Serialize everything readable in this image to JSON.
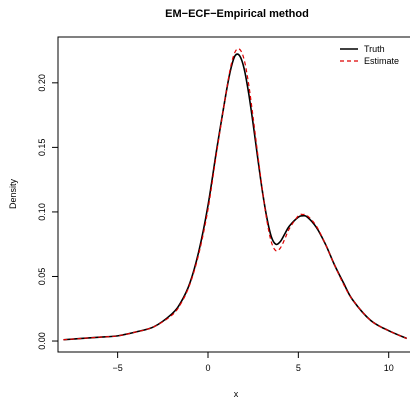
{
  "chart_data": {
    "type": "line",
    "title": "EM−ECF−Empirical method",
    "xlabel": "x",
    "ylabel": "Density",
    "xlim": [
      -8.3,
      11.4
    ],
    "ylim": [
      -0.0085,
      0.2355
    ],
    "x_ticks": [
      -5,
      0,
      5,
      10
    ],
    "x_tick_labels": [
      "−5",
      "0",
      "5",
      "10"
    ],
    "y_ticks": [
      0.0,
      0.05,
      0.1,
      0.15,
      0.2
    ],
    "y_tick_labels": [
      "0.00",
      "0.05",
      "0.10",
      "0.15",
      "0.20"
    ],
    "grid": false,
    "legend_position": "top-right",
    "series": [
      {
        "name": "Truth",
        "color": "#000000",
        "line_style": "solid",
        "x": [
          -8,
          -7,
          -6,
          -5,
          -4,
          -3,
          -2,
          -1.5,
          -1,
          -0.5,
          0,
          0.5,
          1,
          1.25,
          1.5,
          1.75,
          2,
          2.25,
          2.5,
          2.75,
          3,
          3.25,
          3.5,
          3.75,
          4,
          4.25,
          4.5,
          5,
          5.25,
          5.5,
          6,
          6.5,
          7,
          7.5,
          8,
          9,
          10,
          11
        ],
        "y": [
          0.001,
          0.002,
          0.003,
          0.004,
          0.007,
          0.011,
          0.021,
          0.03,
          0.045,
          0.07,
          0.105,
          0.15,
          0.192,
          0.21,
          0.221,
          0.221,
          0.211,
          0.192,
          0.168,
          0.142,
          0.117,
          0.096,
          0.081,
          0.075,
          0.077,
          0.083,
          0.089,
          0.096,
          0.097,
          0.096,
          0.088,
          0.075,
          0.059,
          0.045,
          0.032,
          0.016,
          0.008,
          0.002
        ]
      },
      {
        "name": "Estimate",
        "color": "#dd0000",
        "line_style": "dashed",
        "x": [
          -8,
          -7,
          -6,
          -5,
          -4,
          -3,
          -2,
          -1.5,
          -1,
          -0.5,
          0,
          0.5,
          1,
          1.25,
          1.5,
          1.75,
          2,
          2.25,
          2.5,
          2.75,
          3,
          3.25,
          3.5,
          3.75,
          4,
          4.25,
          4.5,
          5,
          5.25,
          5.5,
          6,
          6.5,
          7,
          7.5,
          8,
          9,
          10,
          11
        ],
        "y": [
          0.001,
          0.002,
          0.003,
          0.004,
          0.007,
          0.011,
          0.02,
          0.029,
          0.044,
          0.068,
          0.102,
          0.148,
          0.192,
          0.212,
          0.224,
          0.226,
          0.218,
          0.199,
          0.173,
          0.145,
          0.118,
          0.094,
          0.077,
          0.07,
          0.072,
          0.079,
          0.087,
          0.097,
          0.098,
          0.097,
          0.089,
          0.075,
          0.059,
          0.044,
          0.032,
          0.016,
          0.008,
          0.002
        ]
      }
    ]
  }
}
